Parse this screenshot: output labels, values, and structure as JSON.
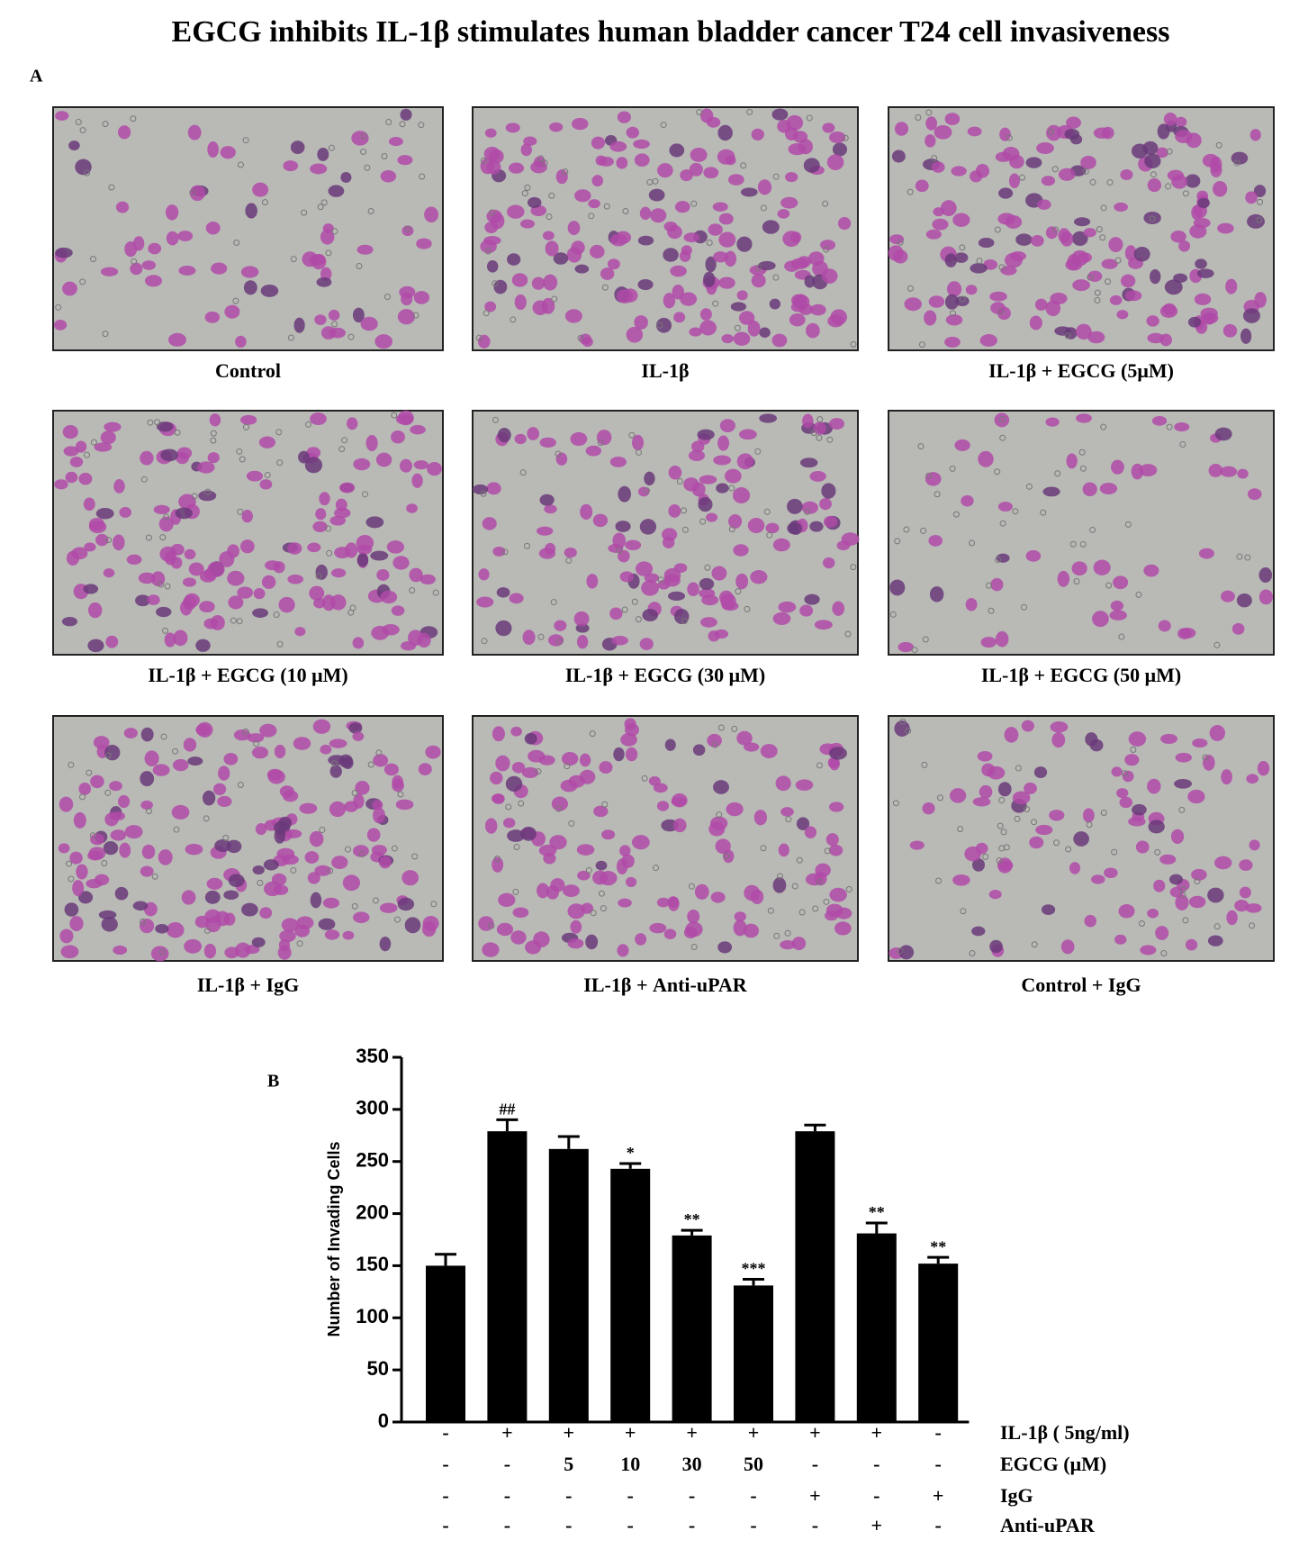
{
  "title": "EGCG inhibits IL-1β stimulates human bladder cancer T24 cell invasiveness",
  "panel_a": {
    "label": "A",
    "captions": [
      "Control",
      "IL-1β",
      "IL-1β  + EGCG (5μM)",
      "IL-1β  + EGCG (10 μM)",
      "IL-1β  + EGCG (30 μM)",
      "IL-1β  + EGCG (50 μM)",
      "IL-1β  + IgG",
      "IL-1β + Anti-uPAR",
      "Control + IgG"
    ]
  },
  "chart_data": {
    "type": "bar",
    "panel_label": "B",
    "y_label": "Number of Invading Cells",
    "values": [
      150,
      279,
      262,
      243,
      179,
      131,
      279,
      181,
      152
    ],
    "errors": [
      11,
      11,
      12,
      5,
      5,
      6,
      6,
      10,
      6
    ],
    "annotations": [
      null,
      "##",
      null,
      "*",
      "**",
      "***",
      null,
      "**",
      "**"
    ],
    "color": "#000000",
    "ylim": [
      0,
      350
    ],
    "yticks": [
      0,
      50,
      100,
      150,
      200,
      250,
      300,
      350
    ],
    "treatment_table": [
      {
        "label": "IL-1β ( 5ng/ml)",
        "cells": [
          "-",
          "+",
          "+",
          "+",
          "+",
          "+",
          "+",
          "+",
          "-"
        ]
      },
      {
        "label": "EGCG (μM)",
        "cells": [
          "-",
          "-",
          "5",
          "10",
          "30",
          "50",
          "-",
          "-",
          "-"
        ]
      },
      {
        "label": "IgG",
        "cells": [
          "-",
          "-",
          "-",
          "-",
          "-",
          "-",
          "+",
          "-",
          "+"
        ]
      },
      {
        "label": "Anti-uPAR",
        "cells": [
          "-",
          "-",
          "-",
          "-",
          "-",
          "-",
          "-",
          "+",
          "-"
        ]
      }
    ]
  }
}
